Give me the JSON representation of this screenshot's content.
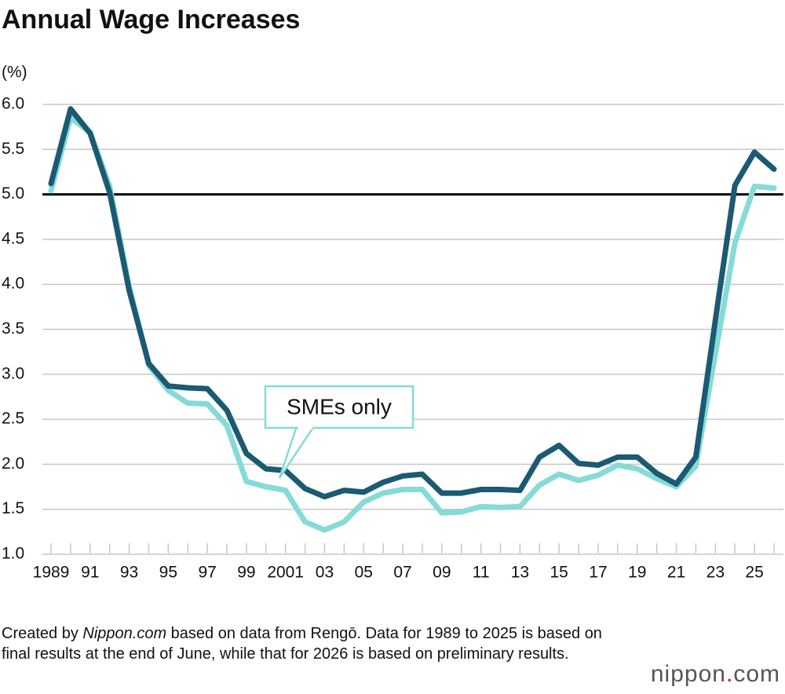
{
  "chart_data": {
    "type": "line",
    "title": "Annual Wage Increases",
    "y_label": "(%)",
    "categories": [
      "1989",
      null,
      "91",
      null,
      "93",
      null,
      "95",
      null,
      "97",
      null,
      "99",
      null,
      "2001",
      null,
      "03",
      null,
      "05",
      null,
      "07",
      null,
      "09",
      null,
      "11",
      null,
      "13",
      null,
      "15",
      null,
      "17",
      null,
      "19",
      null,
      "21",
      null,
      "23",
      null,
      "25",
      null
    ],
    "series": [
      {
        "color": "#1b5a72",
        "values": [
          5.12,
          5.95,
          5.68,
          5.02,
          3.93,
          3.12,
          2.87,
          2.85,
          2.84,
          2.6,
          2.12,
          1.95,
          1.93,
          1.73,
          1.64,
          1.71,
          1.69,
          1.8,
          1.87,
          1.89,
          1.68,
          1.68,
          1.72,
          1.72,
          1.71,
          2.08,
          2.21,
          2.01,
          1.99,
          2.08,
          2.08,
          1.9,
          1.78,
          2.08,
          3.6,
          5.1,
          5.47,
          5.28
        ]
      },
      {
        "name": "SMEs only",
        "color": "#86dad8",
        "values": [
          5.04,
          5.85,
          5.69,
          5.09,
          3.98,
          3.1,
          2.82,
          2.68,
          2.67,
          2.43,
          1.81,
          1.75,
          1.71,
          1.36,
          1.27,
          1.36,
          1.58,
          1.68,
          1.72,
          1.72,
          1.46,
          1.47,
          1.53,
          1.52,
          1.53,
          1.77,
          1.89,
          1.82,
          1.88,
          1.99,
          1.95,
          1.84,
          1.75,
          1.98,
          3.23,
          4.46,
          5.09,
          5.07
        ]
      }
    ],
    "ylim": [
      1.0,
      6.0
    ],
    "yticks": [
      {
        "value": 1.0,
        "label": "1.0"
      },
      1.5,
      {
        "value": 2.0,
        "label": "2.0"
      },
      2.5,
      {
        "value": 3.0,
        "label": "3.0"
      },
      3.5,
      {
        "value": 4.0,
        "label": "4.0"
      },
      4.5,
      {
        "value": 5.0,
        "label": "5.0"
      },
      5.5,
      {
        "value": 6.0,
        "label": "6.0"
      }
    ],
    "reference_line": 5.0,
    "grid": true,
    "note": [
      "Created by ",
      "Nippon.com",
      " based on data from Rengō. Data for 1989 to 2025 is based on final results at the end of June, while that for 2026 is based on preliminary results."
    ],
    "logo": [
      "nippon",
      ".",
      "com"
    ]
  }
}
